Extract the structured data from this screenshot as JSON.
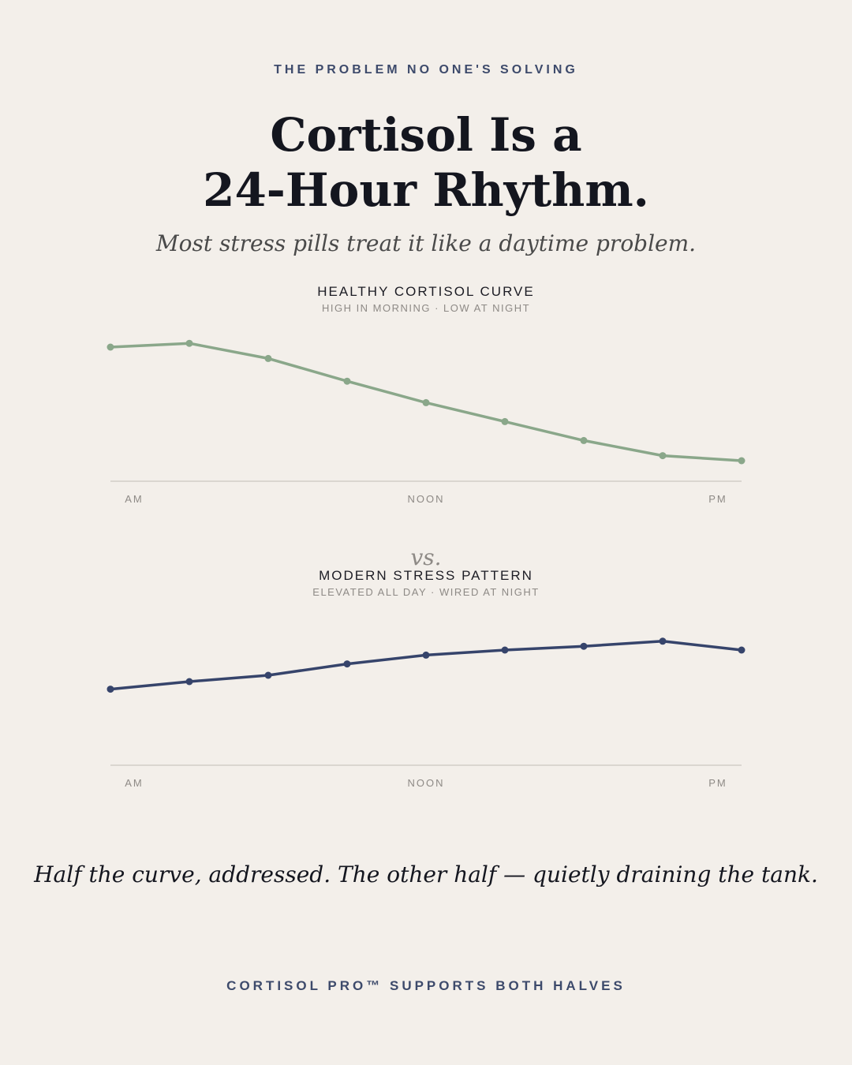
{
  "eyebrow": "THE PROBLEM NO ONE'S SOLVING",
  "headline": {
    "line1": "Cortisol Is a",
    "line2": "24-Hour Rhythm."
  },
  "subhead": "Most stress pills treat it like a daytime problem.",
  "vs_label": "vs.",
  "tagline": "Half the curve, addressed. The other half — quietly draining the tank.",
  "footer": "CORTISOL PRO™ SUPPORTS BOTH HALVES",
  "chart_data": [
    {
      "type": "line",
      "title": "HEALTHY CORTISOL CURVE",
      "subtitle": "HIGH IN MORNING · LOW AT NIGHT",
      "x": [
        0,
        1,
        2,
        3,
        4,
        5,
        6,
        7,
        8
      ],
      "x_tick_labels": [
        "AM",
        "NOON",
        "PM"
      ],
      "ylim": [
        0,
        100
      ],
      "series": [
        {
          "values": [
            100,
            103,
            91,
            73,
            56,
            41,
            26,
            14,
            10
          ]
        }
      ],
      "color": "#8aa78a",
      "grid": false
    },
    {
      "type": "line",
      "title": "MODERN STRESS PATTERN",
      "subtitle": "ELEVATED ALL DAY · WIRED AT NIGHT",
      "x": [
        0,
        1,
        2,
        3,
        4,
        5,
        6,
        7,
        8
      ],
      "x_tick_labels": [
        "AM",
        "NOON",
        "PM"
      ],
      "ylim": [
        0,
        100
      ],
      "series": [
        {
          "values": [
            54,
            60,
            65,
            74,
            81,
            85,
            88,
            92,
            85
          ]
        }
      ],
      "color": "#36446b",
      "grid": false
    }
  ]
}
